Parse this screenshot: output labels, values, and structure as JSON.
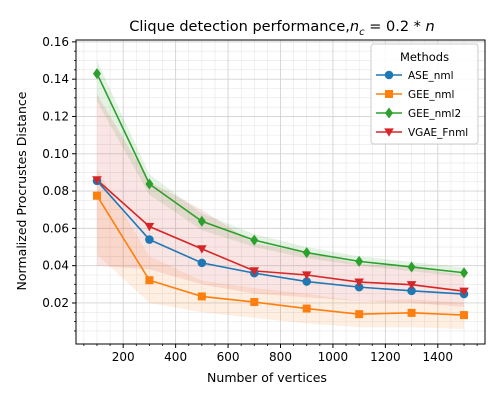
{
  "chart_data": {
    "type": "line",
    "title_main": "Clique detection performance,",
    "title_math": {
      "var": "n",
      "sub": "c",
      "rest": " = 0.2 * ",
      "var2": "n"
    },
    "xlabel": "Number of vertices",
    "ylabel": "Normalized Procrustes Distance",
    "xlim": [
      20,
      1580
    ],
    "ylim": [
      -0.002,
      0.161
    ],
    "x_ticks": [
      200,
      400,
      600,
      800,
      1000,
      1200,
      1400
    ],
    "y_ticks": [
      0.02,
      0.04,
      0.06,
      0.08,
      0.1,
      0.12,
      0.14,
      0.16
    ],
    "y_tick_labels": [
      "0.02",
      "0.04",
      "0.06",
      "0.08",
      "0.10",
      "0.12",
      "0.14",
      "0.16"
    ],
    "grid": true,
    "legend_title": "Methods",
    "legend_position": "upper-right",
    "x": [
      100,
      300,
      500,
      700,
      900,
      1100,
      1300,
      1500
    ],
    "series": [
      {
        "name": "ASE_nml",
        "color": "#1f77b4",
        "marker": "circle",
        "values": [
          0.0855,
          0.054,
          0.0415,
          0.036,
          0.0315,
          0.0285,
          0.0265,
          0.0248
        ],
        "band": null
      },
      {
        "name": "GEE_nml",
        "color": "#ff7f0e",
        "marker": "square",
        "values": [
          0.0775,
          0.0322,
          0.0235,
          0.0205,
          0.017,
          0.014,
          0.0147,
          0.0135
        ],
        "band": {
          "lower": [
            0.046,
            0.02,
            0.015,
            0.012,
            0.009,
            0.007,
            0.007,
            0.006
          ],
          "upper": [
            0.092,
            0.045,
            0.032,
            0.028,
            0.025,
            0.021,
            0.022,
            0.02
          ]
        }
      },
      {
        "name": "GEE_nml2",
        "color": "#2ca02c",
        "marker": "diamond",
        "values": [
          0.143,
          0.0838,
          0.0638,
          0.0537,
          0.047,
          0.0423,
          0.0393,
          0.0362
        ],
        "band": {
          "lower": [
            0.128,
            0.078,
            0.059,
            0.05,
            0.044,
            0.04,
            0.037,
            0.034
          ],
          "upper": [
            0.15,
            0.089,
            0.068,
            0.057,
            0.05,
            0.045,
            0.042,
            0.039
          ]
        }
      },
      {
        "name": "VGAE_Fnml",
        "color": "#d62728",
        "marker": "triangle-down",
        "values": [
          0.086,
          0.061,
          0.049,
          0.0372,
          0.035,
          0.0312,
          0.0298,
          0.0263
        ],
        "band": {
          "lower": [
            0.04,
            0.038,
            0.03,
            0.025,
            0.023,
            0.021,
            0.02,
            0.018
          ],
          "upper": [
            0.132,
            0.085,
            0.07,
            0.052,
            0.047,
            0.041,
            0.039,
            0.035
          ]
        }
      }
    ]
  }
}
